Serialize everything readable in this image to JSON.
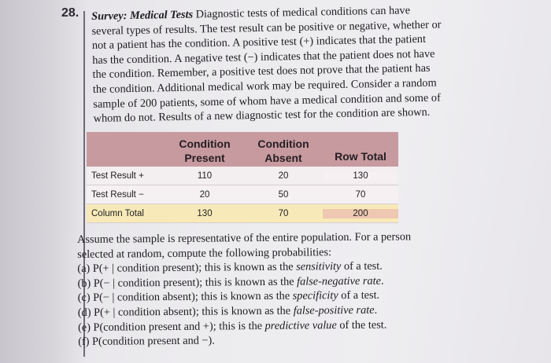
{
  "exercise": {
    "number": "28.",
    "title": "Survey: Medical Tests",
    "lines": [
      "Diagnostic tests of medical conditions can have",
      "several types of results. The test result can be positive or negative, whether or",
      "not a patient has the condition. A positive test (+) indicates that the patient",
      "has the condition. A negative test (−) indicates that the patient does not have",
      "the condition. Remember, a positive test does not prove that the patient has",
      "the condition. Additional medical work may be required. Consider a random",
      "sample of 200 patients, some of whom have a medical condition and some of",
      "whom do not. Results of a new diagnostic test for the condition are shown."
    ]
  },
  "table": {
    "headers": {
      "present": [
        "Condition",
        "Present"
      ],
      "absent": [
        "Condition",
        "Absent"
      ],
      "total": "Row Total"
    },
    "rows": [
      {
        "label": "Test Result +",
        "present": "110",
        "absent": "20",
        "total": "130"
      },
      {
        "label": "Test Result −",
        "present": "20",
        "absent": "50",
        "total": "70"
      },
      {
        "label": "Column Total",
        "present": "130",
        "absent": "70",
        "total": "200"
      }
    ]
  },
  "questions": {
    "intro": [
      "Assume the sample is representative of the entire population. For a person",
      "selected at random, compute the following probabilities:"
    ],
    "items": [
      {
        "pre": "(a) P(+ | condition present); this is known as the ",
        "term": "sensitivity",
        "post": " of a test."
      },
      {
        "pre": "(b) P(− | condition present); this is known as the ",
        "term": "false-negative rate",
        "post": "."
      },
      {
        "pre": "(c) P(− | condition absent); this is known as the ",
        "term": "specificity",
        "post": " of a test."
      },
      {
        "pre": "(d) P(+ | condition absent); this is known as the ",
        "term": "false-positive rate",
        "post": "."
      },
      {
        "pre": "(e) P(condition present and +); this is the ",
        "term": "predictive value",
        "post": " of the test."
      },
      {
        "pre": "(f) P(condition present and −).",
        "term": "",
        "post": ""
      }
    ]
  }
}
